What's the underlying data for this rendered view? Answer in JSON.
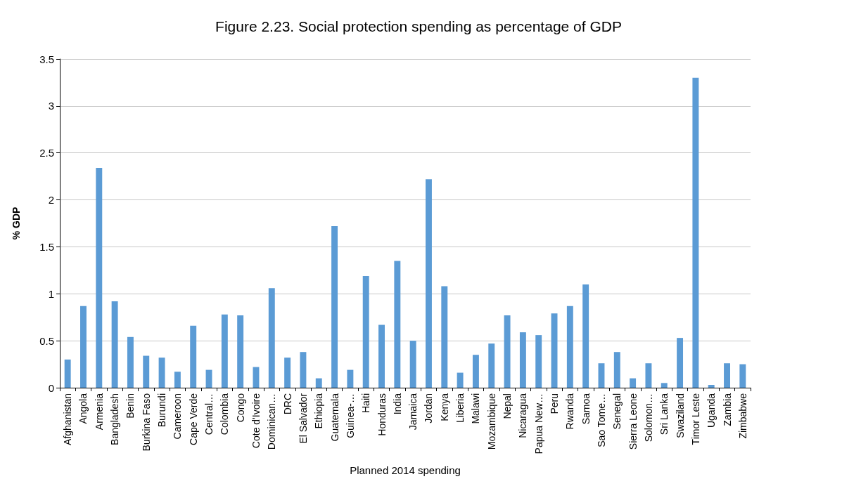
{
  "chart_data": {
    "type": "bar",
    "title": "Figure 2.23. Social protection spending as percentage of GDP",
    "xlabel": "Planned 2014 spending",
    "ylabel": "% GDP",
    "categories": [
      "Afghanistan",
      "Angola",
      "Armenia",
      "Bangladesh",
      "Benin",
      "Burkina Faso",
      "Burundi",
      "Cameroon",
      "Cape Verde",
      "Central…",
      "Colombia",
      "Congo",
      "Cote d'Ivoire",
      "Dominican…",
      "DRC",
      "El Salvador",
      "Ethiopia",
      "Guatemala",
      "Guinea-…",
      "Haiti",
      "Honduras",
      "India",
      "Jamaica",
      "Jordan",
      "Kenya",
      "Liberia",
      "Malawi",
      "Mozambique",
      "Nepal",
      "Nicaragua",
      "Papua New…",
      "Peru",
      "Rwanda",
      "Samoa",
      "Sao Tome…",
      "Senegal",
      "Sierra Leone",
      "Solomon…",
      "Sri Lanka",
      "Swaziland",
      "Timor Leste",
      "Uganda",
      "Zambia",
      "Zimbabwe"
    ],
    "values": [
      0.3,
      0.87,
      2.34,
      0.92,
      0.54,
      0.34,
      0.32,
      0.17,
      0.66,
      0.19,
      0.78,
      0.77,
      0.22,
      1.06,
      0.32,
      0.38,
      0.1,
      1.72,
      0.19,
      1.19,
      0.67,
      1.35,
      0.5,
      2.22,
      1.08,
      0.16,
      0.35,
      0.47,
      0.77,
      0.59,
      0.56,
      0.79,
      0.87,
      1.1,
      0.26,
      0.38,
      0.1,
      0.26,
      0.05,
      0.53,
      3.3,
      0.03,
      0.26,
      0.25
    ],
    "color": "#5b9bd5",
    "ylim": [
      0,
      3.5
    ],
    "yticks": [
      0,
      0.5,
      1,
      1.5,
      2,
      2.5,
      3,
      3.5
    ],
    "grid": "y"
  }
}
